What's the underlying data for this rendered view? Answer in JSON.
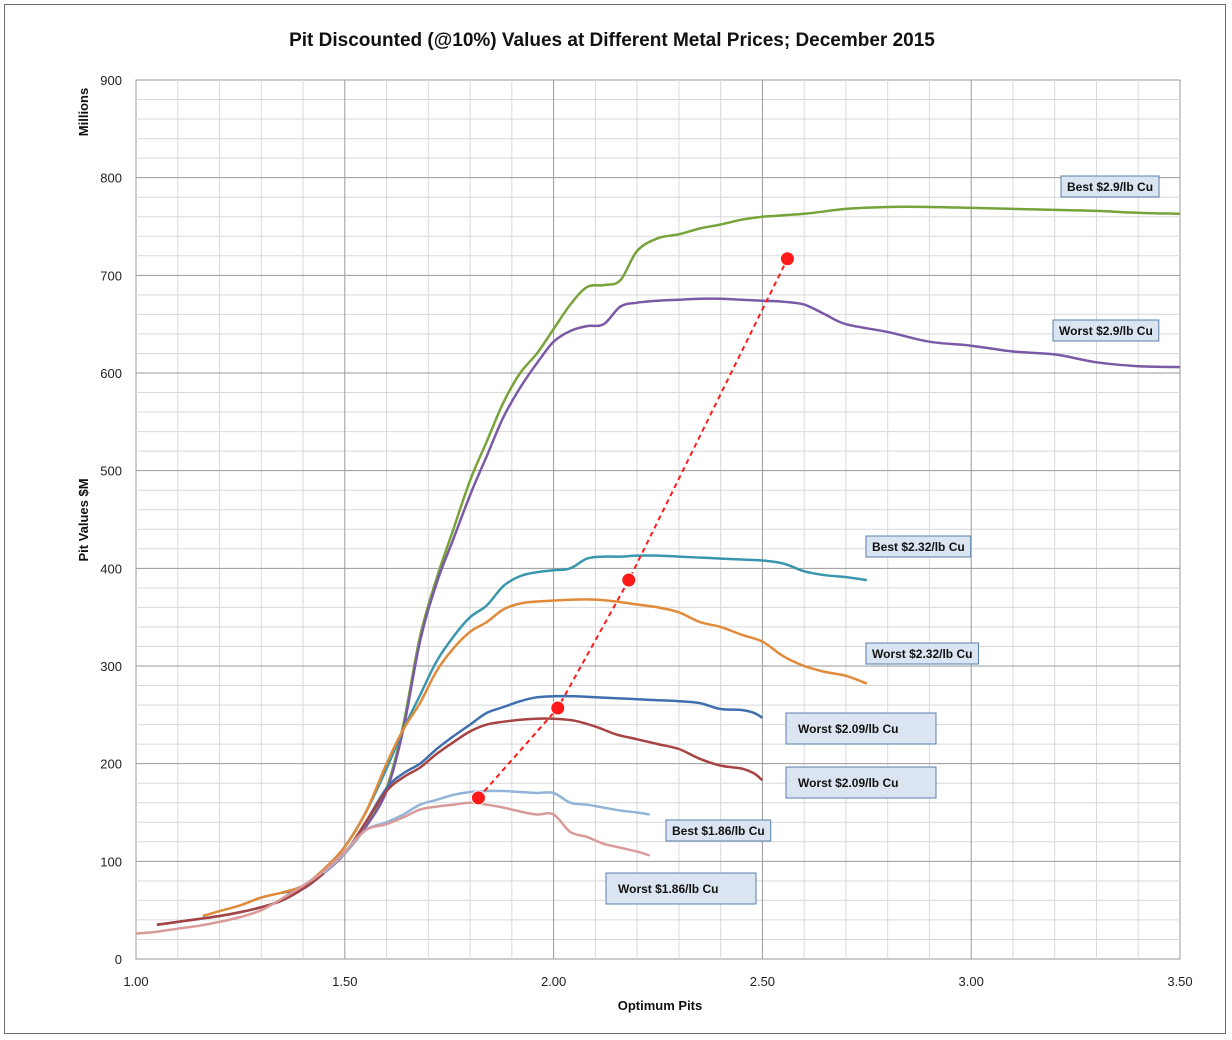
{
  "chart_data": {
    "type": "line",
    "title": "Pit Discounted (@10%) Values at Different Metal Prices; December  2015",
    "xlabel": "Optimum Pits",
    "ylabel": "Pit Values $M",
    "y_unit_label": "Millions",
    "xlim": [
      1.0,
      3.5
    ],
    "ylim": [
      0,
      900
    ],
    "x_ticks": [
      "1.00",
      "1.50",
      "2.00",
      "2.50",
      "3.00",
      "3.50"
    ],
    "y_ticks": [
      "0",
      "100",
      "200",
      "300",
      "400",
      "500",
      "600",
      "700",
      "800",
      "900"
    ],
    "grid": true,
    "series": [
      {
        "name": "Best $2.9/lb Cu",
        "color": "#77a33a",
        "label_style": "small",
        "points": [
          [
            1.35,
            68
          ],
          [
            1.4,
            72
          ],
          [
            1.45,
            88
          ],
          [
            1.5,
            108
          ],
          [
            1.55,
            135
          ],
          [
            1.6,
            175
          ],
          [
            1.64,
            240
          ],
          [
            1.68,
            330
          ],
          [
            1.72,
            390
          ],
          [
            1.76,
            440
          ],
          [
            1.8,
            490
          ],
          [
            1.84,
            530
          ],
          [
            1.88,
            570
          ],
          [
            1.92,
            600
          ],
          [
            1.96,
            620
          ],
          [
            2.0,
            645
          ],
          [
            2.04,
            670
          ],
          [
            2.08,
            688
          ],
          [
            2.12,
            690
          ],
          [
            2.16,
            695
          ],
          [
            2.2,
            725
          ],
          [
            2.25,
            738
          ],
          [
            2.3,
            742
          ],
          [
            2.35,
            748
          ],
          [
            2.4,
            752
          ],
          [
            2.45,
            757
          ],
          [
            2.5,
            760
          ],
          [
            2.6,
            763
          ],
          [
            2.7,
            768
          ],
          [
            2.8,
            770
          ],
          [
            2.9,
            770
          ],
          [
            3.0,
            769
          ],
          [
            3.1,
            768
          ],
          [
            3.2,
            767
          ],
          [
            3.3,
            766
          ],
          [
            3.4,
            764
          ],
          [
            3.5,
            763
          ]
        ]
      },
      {
        "name": "Worst $2.9/lb Cu",
        "color": "#7a5aa6",
        "label_style": "small",
        "points": [
          [
            1.35,
            68
          ],
          [
            1.4,
            72
          ],
          [
            1.45,
            88
          ],
          [
            1.5,
            108
          ],
          [
            1.55,
            135
          ],
          [
            1.6,
            172
          ],
          [
            1.64,
            235
          ],
          [
            1.68,
            325
          ],
          [
            1.72,
            385
          ],
          [
            1.76,
            430
          ],
          [
            1.8,
            475
          ],
          [
            1.84,
            515
          ],
          [
            1.88,
            555
          ],
          [
            1.92,
            585
          ],
          [
            1.96,
            610
          ],
          [
            2.0,
            632
          ],
          [
            2.04,
            643
          ],
          [
            2.08,
            648
          ],
          [
            2.12,
            650
          ],
          [
            2.16,
            668
          ],
          [
            2.2,
            672
          ],
          [
            2.25,
            674
          ],
          [
            2.3,
            675
          ],
          [
            2.35,
            676
          ],
          [
            2.4,
            676
          ],
          [
            2.45,
            675
          ],
          [
            2.5,
            674
          ],
          [
            2.55,
            673
          ],
          [
            2.6,
            670
          ],
          [
            2.65,
            660
          ],
          [
            2.7,
            650
          ],
          [
            2.8,
            642
          ],
          [
            2.9,
            632
          ],
          [
            3.0,
            628
          ],
          [
            3.1,
            622
          ],
          [
            3.2,
            619
          ],
          [
            3.3,
            611
          ],
          [
            3.4,
            607
          ],
          [
            3.5,
            606
          ]
        ]
      },
      {
        "name": "Best $2.32/lb Cu",
        "color": "#3a96ad",
        "label_style": "small",
        "points": [
          [
            1.35,
            68
          ],
          [
            1.4,
            75
          ],
          [
            1.45,
            92
          ],
          [
            1.5,
            115
          ],
          [
            1.55,
            150
          ],
          [
            1.6,
            195
          ],
          [
            1.64,
            235
          ],
          [
            1.68,
            270
          ],
          [
            1.72,
            305
          ],
          [
            1.76,
            330
          ],
          [
            1.8,
            350
          ],
          [
            1.84,
            362
          ],
          [
            1.88,
            382
          ],
          [
            1.92,
            392
          ],
          [
            1.96,
            396
          ],
          [
            2.0,
            398
          ],
          [
            2.04,
            400
          ],
          [
            2.08,
            410
          ],
          [
            2.12,
            412
          ],
          [
            2.16,
            412
          ],
          [
            2.2,
            413
          ],
          [
            2.25,
            413
          ],
          [
            2.3,
            412
          ],
          [
            2.35,
            411
          ],
          [
            2.4,
            410
          ],
          [
            2.45,
            409
          ],
          [
            2.5,
            408
          ],
          [
            2.55,
            405
          ],
          [
            2.6,
            397
          ],
          [
            2.65,
            393
          ],
          [
            2.7,
            391
          ],
          [
            2.75,
            388
          ]
        ]
      },
      {
        "name": "Worst $2.32/lb Cu",
        "color": "#e08a3a",
        "label_style": "small",
        "points": [
          [
            1.16,
            44
          ],
          [
            1.2,
            49
          ],
          [
            1.25,
            55
          ],
          [
            1.3,
            63
          ],
          [
            1.35,
            68
          ],
          [
            1.4,
            75
          ],
          [
            1.45,
            92
          ],
          [
            1.5,
            115
          ],
          [
            1.55,
            150
          ],
          [
            1.6,
            200
          ],
          [
            1.64,
            235
          ],
          [
            1.68,
            262
          ],
          [
            1.72,
            295
          ],
          [
            1.76,
            318
          ],
          [
            1.8,
            335
          ],
          [
            1.84,
            345
          ],
          [
            1.88,
            358
          ],
          [
            1.92,
            364
          ],
          [
            1.96,
            366
          ],
          [
            2.0,
            367
          ],
          [
            2.05,
            368
          ],
          [
            2.1,
            368
          ],
          [
            2.15,
            366
          ],
          [
            2.2,
            363
          ],
          [
            2.25,
            360
          ],
          [
            2.3,
            355
          ],
          [
            2.35,
            345
          ],
          [
            2.4,
            340
          ],
          [
            2.45,
            332
          ],
          [
            2.5,
            325
          ],
          [
            2.55,
            310
          ],
          [
            2.6,
            300
          ],
          [
            2.65,
            294
          ],
          [
            2.7,
            290
          ],
          [
            2.75,
            282
          ]
        ]
      },
      {
        "name": "Worst $2.09/lb Cu",
        "color": "#3f6fae",
        "label_style": "large",
        "points": [
          [
            1.05,
            35
          ],
          [
            1.1,
            38
          ],
          [
            1.15,
            41
          ],
          [
            1.2,
            44
          ],
          [
            1.25,
            48
          ],
          [
            1.3,
            53
          ],
          [
            1.35,
            60
          ],
          [
            1.4,
            72
          ],
          [
            1.45,
            88
          ],
          [
            1.5,
            108
          ],
          [
            1.55,
            140
          ],
          [
            1.6,
            175
          ],
          [
            1.64,
            190
          ],
          [
            1.68,
            200
          ],
          [
            1.72,
            215
          ],
          [
            1.76,
            228
          ],
          [
            1.8,
            240
          ],
          [
            1.84,
            252
          ],
          [
            1.88,
            258
          ],
          [
            1.92,
            264
          ],
          [
            1.96,
            268
          ],
          [
            2.0,
            269
          ],
          [
            2.05,
            269
          ],
          [
            2.1,
            268
          ],
          [
            2.15,
            267
          ],
          [
            2.2,
            266
          ],
          [
            2.25,
            265
          ],
          [
            2.3,
            264
          ],
          [
            2.35,
            262
          ],
          [
            2.4,
            256
          ],
          [
            2.45,
            255
          ],
          [
            2.48,
            252
          ],
          [
            2.5,
            247
          ]
        ]
      },
      {
        "name": "Worst $2.09/lb Cu",
        "color": "#a84343",
        "label_style": "large",
        "points": [
          [
            1.05,
            35
          ],
          [
            1.1,
            38
          ],
          [
            1.15,
            41
          ],
          [
            1.2,
            44
          ],
          [
            1.25,
            48
          ],
          [
            1.3,
            53
          ],
          [
            1.35,
            60
          ],
          [
            1.4,
            72
          ],
          [
            1.45,
            88
          ],
          [
            1.5,
            108
          ],
          [
            1.55,
            140
          ],
          [
            1.6,
            172
          ],
          [
            1.64,
            186
          ],
          [
            1.68,
            196
          ],
          [
            1.72,
            210
          ],
          [
            1.76,
            222
          ],
          [
            1.8,
            233
          ],
          [
            1.84,
            240
          ],
          [
            1.88,
            243
          ],
          [
            1.92,
            245
          ],
          [
            1.96,
            246
          ],
          [
            2.0,
            246
          ],
          [
            2.05,
            244
          ],
          [
            2.1,
            238
          ],
          [
            2.15,
            230
          ],
          [
            2.2,
            225
          ],
          [
            2.25,
            220
          ],
          [
            2.3,
            215
          ],
          [
            2.35,
            205
          ],
          [
            2.4,
            198
          ],
          [
            2.45,
            195
          ],
          [
            2.48,
            190
          ],
          [
            2.5,
            183
          ]
        ]
      },
      {
        "name": "Best $1.86/lb Cu",
        "color": "#93b4d9",
        "label_style": "small",
        "points": [
          [
            1.45,
            88
          ],
          [
            1.5,
            108
          ],
          [
            1.55,
            132
          ],
          [
            1.6,
            140
          ],
          [
            1.64,
            148
          ],
          [
            1.68,
            158
          ],
          [
            1.72,
            163
          ],
          [
            1.76,
            168
          ],
          [
            1.8,
            171
          ],
          [
            1.84,
            172
          ],
          [
            1.88,
            172
          ],
          [
            1.92,
            171
          ],
          [
            1.96,
            170
          ],
          [
            2.0,
            170
          ],
          [
            2.04,
            160
          ],
          [
            2.08,
            158
          ],
          [
            2.12,
            155
          ],
          [
            2.16,
            152
          ],
          [
            2.2,
            150
          ],
          [
            2.23,
            148
          ]
        ]
      },
      {
        "name": "Worst  $1.86/lb Cu",
        "color": "#d99a9a",
        "label_style": "large",
        "points": [
          [
            1.0,
            26
          ],
          [
            1.05,
            28
          ],
          [
            1.1,
            31
          ],
          [
            1.15,
            34
          ],
          [
            1.2,
            38
          ],
          [
            1.25,
            43
          ],
          [
            1.3,
            50
          ],
          [
            1.35,
            62
          ],
          [
            1.4,
            75
          ],
          [
            1.45,
            90
          ],
          [
            1.5,
            110
          ],
          [
            1.55,
            132
          ],
          [
            1.6,
            138
          ],
          [
            1.64,
            145
          ],
          [
            1.68,
            153
          ],
          [
            1.72,
            156
          ],
          [
            1.76,
            158
          ],
          [
            1.8,
            160
          ],
          [
            1.84,
            158
          ],
          [
            1.88,
            155
          ],
          [
            1.92,
            151
          ],
          [
            1.96,
            148
          ],
          [
            2.0,
            148
          ],
          [
            2.04,
            130
          ],
          [
            2.08,
            125
          ],
          [
            2.12,
            118
          ],
          [
            2.16,
            114
          ],
          [
            2.2,
            110
          ],
          [
            2.23,
            106
          ]
        ]
      }
    ],
    "highlight": {
      "color": "#ff1a1a",
      "points": [
        [
          1.82,
          165
        ],
        [
          2.01,
          257
        ],
        [
          2.18,
          388
        ],
        [
          2.56,
          717
        ]
      ]
    }
  }
}
